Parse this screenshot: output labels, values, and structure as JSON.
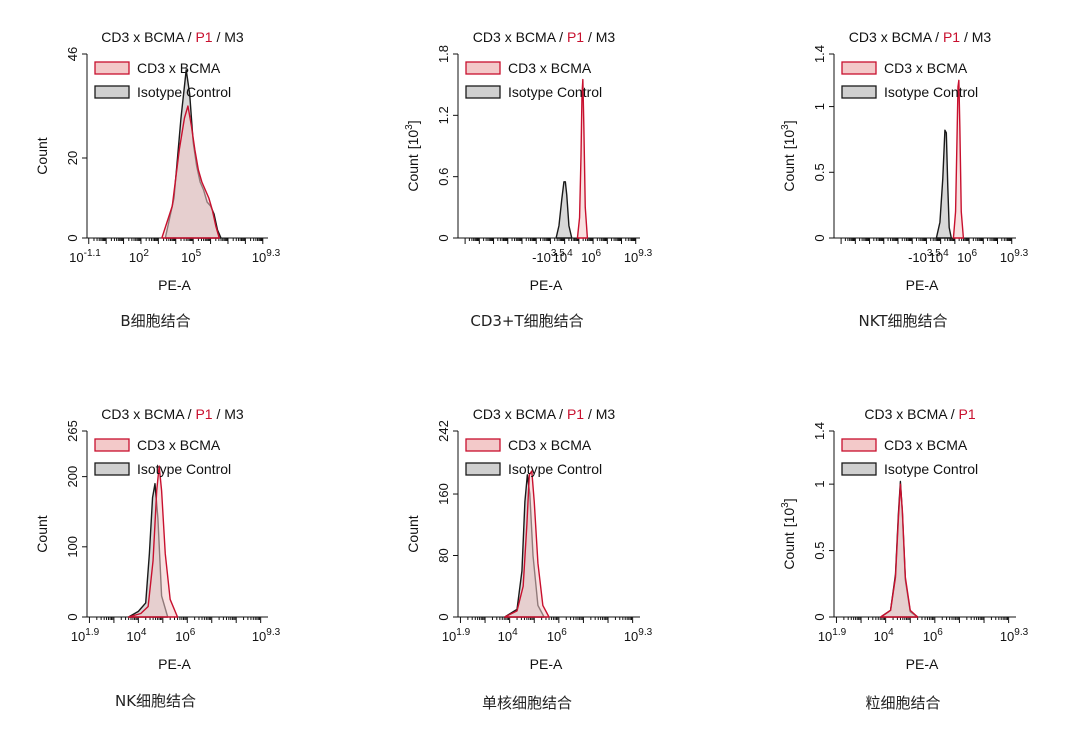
{
  "colors": {
    "sample_stroke": "#c8102e",
    "sample_fill": "#f3c9c9",
    "control_stroke": "#1a1a1a",
    "control_fill": "#b8b8b8",
    "gate_red": "#c8102e"
  },
  "chart_data": [
    {
      "type": "area",
      "title": {
        "main": "CD3 x BCMA",
        "sep1": " / ",
        "gate": "P1",
        "sep2": " / ",
        "marker": "M3"
      },
      "xlabel": "PE-A",
      "ylabel": "Count",
      "xscale": "log",
      "xticks": [
        {
          "base": "10",
          "exp": "-1.1"
        },
        {
          "base": "10",
          "exp": "2"
        },
        {
          "base": "10",
          "exp": "5"
        },
        {
          "base": "10",
          "exp": "9.3"
        }
      ],
      "yticks": [
        "0",
        "20",
        "46"
      ],
      "ylim": [
        0,
        46
      ],
      "legend": [
        "CD3 x BCMA",
        "Isotype Control"
      ],
      "caption": "B细胞结合",
      "series": [
        {
          "name": "CD3 x BCMA",
          "x": [
            3.2,
            3.8,
            4.2,
            4.5,
            4.7,
            4.9,
            5.1,
            5.3,
            5.5,
            5.7,
            5.9,
            6.1,
            6.3,
            6.5
          ],
          "y": [
            0,
            8,
            22,
            30,
            33,
            28,
            22,
            17,
            14,
            12,
            10,
            7,
            3,
            0
          ]
        },
        {
          "name": "Isotype Control",
          "x": [
            3.4,
            3.9,
            4.3,
            4.6,
            4.8,
            5.0,
            5.2,
            5.4,
            5.6,
            5.8,
            6.0,
            6.2,
            6.4,
            6.6
          ],
          "y": [
            0,
            10,
            30,
            42,
            36,
            24,
            18,
            14,
            12,
            9,
            8,
            6,
            2,
            0
          ]
        }
      ]
    },
    {
      "type": "area",
      "title": {
        "main": "CD3 x BCMA",
        "sep1": " / ",
        "gate": "P1",
        "sep2": " / ",
        "marker": "M3"
      },
      "xlabel": "PE-A",
      "ylabel": "Count",
      "ylabel_unit": "[10",
      "ylabel_exp": "3",
      "ylabel_close": "]",
      "xscale": "biexponential",
      "xticks": [
        {
          "base": "-10",
          "exp": "3.5"
        },
        {
          "base": "10",
          "exp": "4"
        },
        {
          "base": "10",
          "exp": "6"
        },
        {
          "base": "10",
          "exp": "9.3"
        }
      ],
      "yticks": [
        "0",
        "0.6",
        "1.2",
        "1.8"
      ],
      "ylim": [
        0,
        1.8
      ],
      "legend": [
        "CD3 x BCMA",
        "Isotype Control"
      ],
      "caption": "CD3+T细胞结合",
      "series": [
        {
          "name": "CD3 x BCMA",
          "x": [
            4.9,
            5.05,
            5.15,
            5.22,
            5.28,
            5.35,
            5.45,
            5.6
          ],
          "y": [
            0,
            0.2,
            0.8,
            1.4,
            1.55,
            1.1,
            0.3,
            0
          ]
        },
        {
          "name": "Isotype Control",
          "x": [
            3.4,
            3.6,
            3.8,
            3.95,
            4.05,
            4.15,
            4.3,
            4.5
          ],
          "y": [
            0,
            0.12,
            0.38,
            0.55,
            0.55,
            0.42,
            0.12,
            0
          ]
        }
      ]
    },
    {
      "type": "area",
      "title": {
        "main": "CD3 x BCMA",
        "sep1": " / ",
        "gate": "P1",
        "sep2": " / ",
        "marker": "M3"
      },
      "xlabel": "PE-A",
      "ylabel": "Count",
      "ylabel_unit": "[10",
      "ylabel_exp": "3",
      "ylabel_close": "]",
      "xscale": "biexponential",
      "xticks": [
        {
          "base": "-10",
          "exp": "3.5"
        },
        {
          "base": "10",
          "exp": "4"
        },
        {
          "base": "10",
          "exp": "6"
        },
        {
          "base": "10",
          "exp": "9.3"
        }
      ],
      "yticks": [
        "0",
        "0.5",
        "1",
        "1.4"
      ],
      "ylim": [
        0,
        1.4
      ],
      "legend": [
        "CD3 x BCMA",
        "Isotype Control"
      ],
      "caption": "NKT细胞结合",
      "series": [
        {
          "name": "CD3 x BCMA",
          "x": [
            4.9,
            5.05,
            5.15,
            5.22,
            5.28,
            5.35,
            5.45,
            5.6
          ],
          "y": [
            0,
            0.2,
            0.75,
            1.15,
            1.2,
            0.85,
            0.2,
            0
          ]
        },
        {
          "name": "Isotype Control",
          "x": [
            3.7,
            3.95,
            4.15,
            4.3,
            4.4,
            4.5,
            4.6,
            4.75
          ],
          "y": [
            0,
            0.12,
            0.45,
            0.82,
            0.8,
            0.4,
            0.08,
            0
          ]
        }
      ]
    },
    {
      "type": "area",
      "title": {
        "main": "CD3 x BCMA",
        "sep1": " / ",
        "gate": "P1",
        "sep2": " / ",
        "marker": "M3"
      },
      "xlabel": "PE-A",
      "ylabel": "Count",
      "xscale": "log",
      "xticks": [
        {
          "base": "10",
          "exp": "1.9"
        },
        {
          "base": "10",
          "exp": "4"
        },
        {
          "base": "10",
          "exp": "6"
        },
        {
          "base": "10",
          "exp": "9.3"
        }
      ],
      "yticks": [
        "0",
        "100",
        "200",
        "265"
      ],
      "ylim": [
        0,
        265
      ],
      "legend": [
        "CD3 x BCMA",
        "Isotype Control"
      ],
      "caption": "NK细胞结合",
      "series": [
        {
          "name": "CD3 x BCMA",
          "x": [
            3.6,
            4.1,
            4.4,
            4.6,
            4.75,
            4.85,
            4.95,
            5.1,
            5.3,
            5.6
          ],
          "y": [
            0,
            5,
            15,
            80,
            180,
            215,
            180,
            90,
            25,
            0
          ]
        },
        {
          "name": "Isotype Control",
          "x": [
            3.6,
            4.0,
            4.3,
            4.45,
            4.58,
            4.68,
            4.8,
            4.95,
            5.2
          ],
          "y": [
            0,
            8,
            20,
            90,
            170,
            190,
            140,
            30,
            0
          ]
        }
      ]
    },
    {
      "type": "area",
      "title": {
        "main": "CD3 x BCMA",
        "sep1": " / ",
        "gate": "P1",
        "sep2": " / ",
        "marker": "M3"
      },
      "xlabel": "PE-A",
      "ylabel": "Count",
      "xscale": "log",
      "xticks": [
        {
          "base": "10",
          "exp": "1.9"
        },
        {
          "base": "10",
          "exp": "4"
        },
        {
          "base": "10",
          "exp": "6"
        },
        {
          "base": "10",
          "exp": "9.3"
        }
      ],
      "yticks": [
        "0",
        "80",
        "160",
        "242"
      ],
      "ylim": [
        0,
        242
      ],
      "legend": [
        "CD3 x BCMA",
        "Isotype Control"
      ],
      "caption": "单核细胞结合",
      "series": [
        {
          "name": "CD3 x BCMA",
          "x": [
            3.8,
            4.3,
            4.55,
            4.7,
            4.8,
            4.9,
            5.0,
            5.15,
            5.35,
            5.6
          ],
          "y": [
            0,
            8,
            40,
            120,
            185,
            190,
            150,
            70,
            15,
            0
          ]
        },
        {
          "name": "Isotype Control",
          "x": [
            3.8,
            4.3,
            4.5,
            4.62,
            4.72,
            4.82,
            4.95,
            5.15,
            5.4
          ],
          "y": [
            0,
            10,
            60,
            150,
            185,
            160,
            80,
            15,
            0
          ]
        }
      ]
    },
    {
      "type": "area",
      "title": {
        "main": "CD3 x BCMA",
        "sep1": " / ",
        "gate": "P1",
        "sep2": "",
        "marker": ""
      },
      "xlabel": "PE-A",
      "ylabel": "Count",
      "ylabel_unit": "[10",
      "ylabel_exp": "3",
      "ylabel_close": "]",
      "xscale": "log",
      "xticks": [
        {
          "base": "10",
          "exp": "1.9"
        },
        {
          "base": "10",
          "exp": "4"
        },
        {
          "base": "10",
          "exp": "6"
        },
        {
          "base": "10",
          "exp": "9.3"
        }
      ],
      "yticks": [
        "0",
        "0.5",
        "1",
        "1.4"
      ],
      "ylim": [
        0,
        1.4
      ],
      "legend": [
        "CD3 x BCMA",
        "Isotype Control"
      ],
      "caption": "粒细胞结合",
      "series": [
        {
          "name": "CD3 x BCMA",
          "x": [
            3.8,
            4.2,
            4.4,
            4.52,
            4.6,
            4.68,
            4.8,
            5.0,
            5.3
          ],
          "y": [
            0,
            0.05,
            0.3,
            0.75,
            1.0,
            0.8,
            0.3,
            0.05,
            0
          ]
        },
        {
          "name": "Isotype Control",
          "x": [
            3.8,
            4.2,
            4.4,
            4.52,
            4.6,
            4.68,
            4.8,
            5.0,
            5.3
          ],
          "y": [
            0,
            0.05,
            0.32,
            0.78,
            1.02,
            0.78,
            0.28,
            0.04,
            0
          ]
        }
      ]
    }
  ]
}
